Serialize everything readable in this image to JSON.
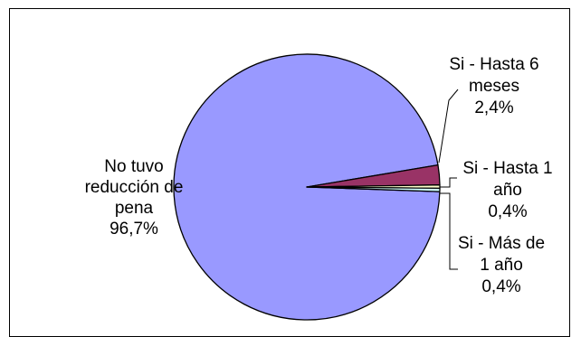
{
  "chart_data": {
    "type": "pie",
    "title": "",
    "legend": "none",
    "slices": [
      {
        "label_lines": [
          "No tuvo",
          "reducción de",
          "pena",
          "96,7%"
        ],
        "category": "No tuvo reducción de pena",
        "value": 96.7,
        "value_label": "96,7%",
        "color": "#9999ff"
      },
      {
        "label_lines": [
          "Si - Hasta 6",
          "meses",
          "2,4%"
        ],
        "category": "Si - Hasta 6 meses",
        "value": 2.4,
        "value_label": "2,4%",
        "color": "#993366"
      },
      {
        "label_lines": [
          "Si - Hasta 1",
          "año",
          "0,4%"
        ],
        "category": "Si - Hasta 1 año",
        "value": 0.4,
        "value_label": "0,4%",
        "color": "#ffffcc"
      },
      {
        "label_lines": [
          "Si - Más de",
          "1 año",
          "0,4%"
        ],
        "category": "Si - Más de 1 año",
        "value": 0.4,
        "value_label": "0,4%",
        "color": "#ccffff"
      }
    ]
  }
}
